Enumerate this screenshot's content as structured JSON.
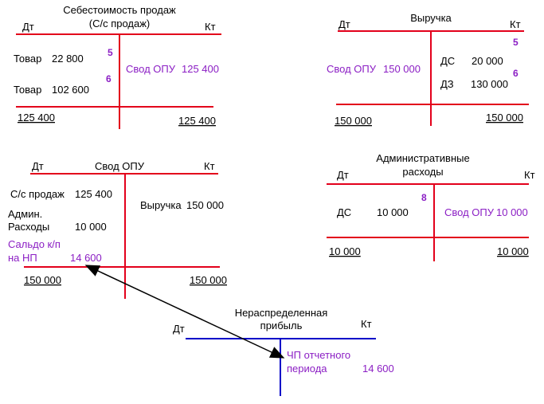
{
  "accounts": [
    {
      "title": [
        "Себестоимость продаж",
        "(С/с продаж)"
      ],
      "dt": "Дт",
      "kt": "Кт",
      "debit": [
        {
          "label": "Товар",
          "amount": "22 800"
        },
        {
          "label": "Товар",
          "amount": "102 600"
        }
      ],
      "credit": [
        {
          "label": "Свод ОПУ",
          "amount": "125 400"
        }
      ],
      "refs": [
        "5",
        "6"
      ],
      "debit_total": "125 400",
      "credit_total": "125 400"
    },
    {
      "title": [
        "Выручка"
      ],
      "dt": "Дт",
      "kt": "Кт",
      "debit": [
        {
          "label": "Свод ОПУ",
          "amount": "150 000"
        }
      ],
      "credit": [
        {
          "label": "ДС",
          "amount": "20 000"
        },
        {
          "label": "ДЗ",
          "amount": "130 000"
        }
      ],
      "refs": [
        "5",
        "6"
      ],
      "debit_total": "150 000",
      "credit_total": "150 000"
    },
    {
      "title": [
        "Свод ОПУ"
      ],
      "dt": "Дт",
      "kt": "Кт",
      "debit": [
        {
          "label": "С/с продаж",
          "amount": "125 400"
        },
        {
          "label": [
            "Админ.",
            "Расходы"
          ],
          "amount": "10 000"
        },
        {
          "label": [
            "Сальдо к/п",
            "на НП"
          ],
          "amount": "14 600"
        }
      ],
      "credit": [
        {
          "label": "Выручка",
          "amount": "150 000"
        }
      ],
      "debit_total": "150 000",
      "credit_total": "150 000"
    },
    {
      "title": [
        "Административные",
        "расходы"
      ],
      "dt": "Дт",
      "kt": "Кт",
      "debit": [
        {
          "label": "ДС",
          "amount": "10 000"
        }
      ],
      "credit": [
        {
          "label": "Свод ОПУ",
          "amount": "10 000"
        }
      ],
      "refs": [
        "8"
      ],
      "debit_total": "10 000",
      "credit_total": "10 000"
    },
    {
      "title": [
        "Нераспределенная",
        "прибыль"
      ],
      "dt": "Дт",
      "kt": "Кт",
      "credit": [
        {
          "label": [
            "ЧП отчетного",
            "периода"
          ],
          "amount": "14 600"
        }
      ]
    }
  ]
}
